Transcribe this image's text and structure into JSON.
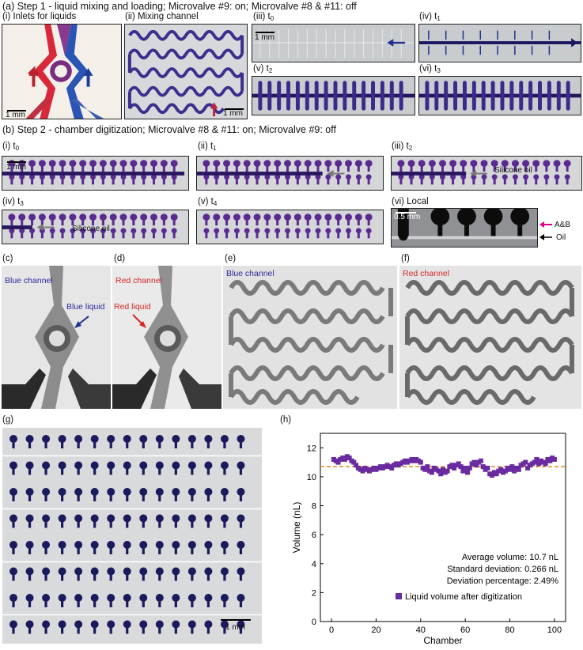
{
  "figure": {
    "section_a_title": "(a) Step 1 - liquid mixing and loading; Microvalve #9: on; Microvalve #8 & #11: off",
    "section_b_title": "(b) Step 2 - chamber digitization; Microvalve #8 & #11: on; Microvalve #9: off"
  },
  "panel_a": {
    "i_label": "(i) Inlets for liquids",
    "ii_label": "(ii) Mixing channel",
    "iii_label": "(iii) t",
    "iii_sub": "0",
    "iv_label": "(iv) t",
    "iv_sub": "1",
    "v_label": "(v) t",
    "v_sub": "2",
    "vi_label": "(vi) t",
    "vi_sub": "3",
    "scale_1mm": "1 mm"
  },
  "panel_b": {
    "i_label": "(i) t",
    "i_sub": "0",
    "ii_label": "(ii) t",
    "ii_sub": "1",
    "iii_label": "(iii) t",
    "iii_sub": "2",
    "iv_label": "(iv) t",
    "iv_sub": "3",
    "v_label": "(v) t",
    "v_sub": "4",
    "vi_label": "(vi) Local",
    "silicone_oil": "Silicone oil",
    "scale_1mm": "1 mm",
    "scale_05mm": "0.5 mm",
    "ab_label": "A&B",
    "oil_label": "Oil"
  },
  "panel_c": {
    "label": "(c)",
    "channel": "Blue channel",
    "liquid": "Blue liquid"
  },
  "panel_d": {
    "label": "(d)",
    "channel": "Red channel",
    "liquid": "Red liquid"
  },
  "panel_e": {
    "label": "(e)",
    "channel": "Blue channel"
  },
  "panel_f": {
    "label": "(f)",
    "channel": "Red channel"
  },
  "panel_g": {
    "label": "(g)",
    "scale": "1 mm"
  },
  "panel_h": {
    "label": "(h)"
  },
  "colors": {
    "purple": "#5a2a91",
    "dark_purple": "#2a1660",
    "blue": "#1f3c9a",
    "red": "#d6282b",
    "orange": "#e08a1e",
    "magenta": "#e0008a"
  },
  "chart_data": {
    "type": "scatter",
    "xlabel": "Chamber",
    "ylabel": "Volume (nL)",
    "xlim": [
      -5,
      105
    ],
    "ylim": [
      0,
      13
    ],
    "xticks": [
      0,
      20,
      40,
      60,
      80,
      100
    ],
    "yticks": [
      0,
      2,
      4,
      6,
      8,
      10,
      12
    ],
    "mean_line": 10.7,
    "legend": "Liquid volume after digitization",
    "annotations": [
      "Average volume: 10.7 nL",
      "Standard deviation: 0.266 nL",
      "Deviation percentage: 2.49%"
    ],
    "x": [
      1,
      2,
      3,
      4,
      5,
      6,
      7,
      8,
      9,
      10,
      11,
      12,
      13,
      14,
      15,
      16,
      17,
      18,
      19,
      20,
      21,
      22,
      23,
      24,
      25,
      26,
      27,
      28,
      29,
      30,
      31,
      32,
      33,
      34,
      35,
      36,
      37,
      38,
      39,
      40,
      41,
      42,
      43,
      44,
      45,
      46,
      47,
      48,
      49,
      50,
      51,
      52,
      53,
      54,
      55,
      56,
      57,
      58,
      59,
      60,
      61,
      62,
      63,
      64,
      65,
      66,
      67,
      68,
      69,
      70,
      71,
      72,
      73,
      74,
      75,
      76,
      77,
      78,
      79,
      80,
      81,
      82,
      83,
      84,
      85,
      86,
      87,
      88,
      89,
      90,
      91,
      92,
      93,
      94,
      95,
      96,
      97,
      98,
      99,
      100
    ],
    "values": [
      11.2,
      11.1,
      11.0,
      11.2,
      11.3,
      11.2,
      11.4,
      11.3,
      11.1,
      11.0,
      10.8,
      10.6,
      10.5,
      10.4,
      10.6,
      10.5,
      10.4,
      10.5,
      10.6,
      10.5,
      10.6,
      10.7,
      10.6,
      10.7,
      10.8,
      10.7,
      10.6,
      10.8,
      10.9,
      10.8,
      10.9,
      11.0,
      11.1,
      11.0,
      11.1,
      11.2,
      11.1,
      11.2,
      11.1,
      11.0,
      10.6,
      10.5,
      10.7,
      10.4,
      10.3,
      10.6,
      10.5,
      10.4,
      10.2,
      10.5,
      10.3,
      10.4,
      10.7,
      10.8,
      10.6,
      10.8,
      10.9,
      10.7,
      10.4,
      10.6,
      10.3,
      10.6,
      10.9,
      11.0,
      10.8,
      11.0,
      11.1,
      10.7,
      10.5,
      10.6,
      10.2,
      10.1,
      10.3,
      10.2,
      10.4,
      10.5,
      10.3,
      10.4,
      10.6,
      10.5,
      10.7,
      10.4,
      10.6,
      10.5,
      10.8,
      10.9,
      11.0,
      10.6,
      10.8,
      10.9,
      11.0,
      11.2,
      10.9,
      11.1,
      11.0,
      10.9,
      11.2,
      11.1,
      11.3,
      11.2
    ]
  }
}
